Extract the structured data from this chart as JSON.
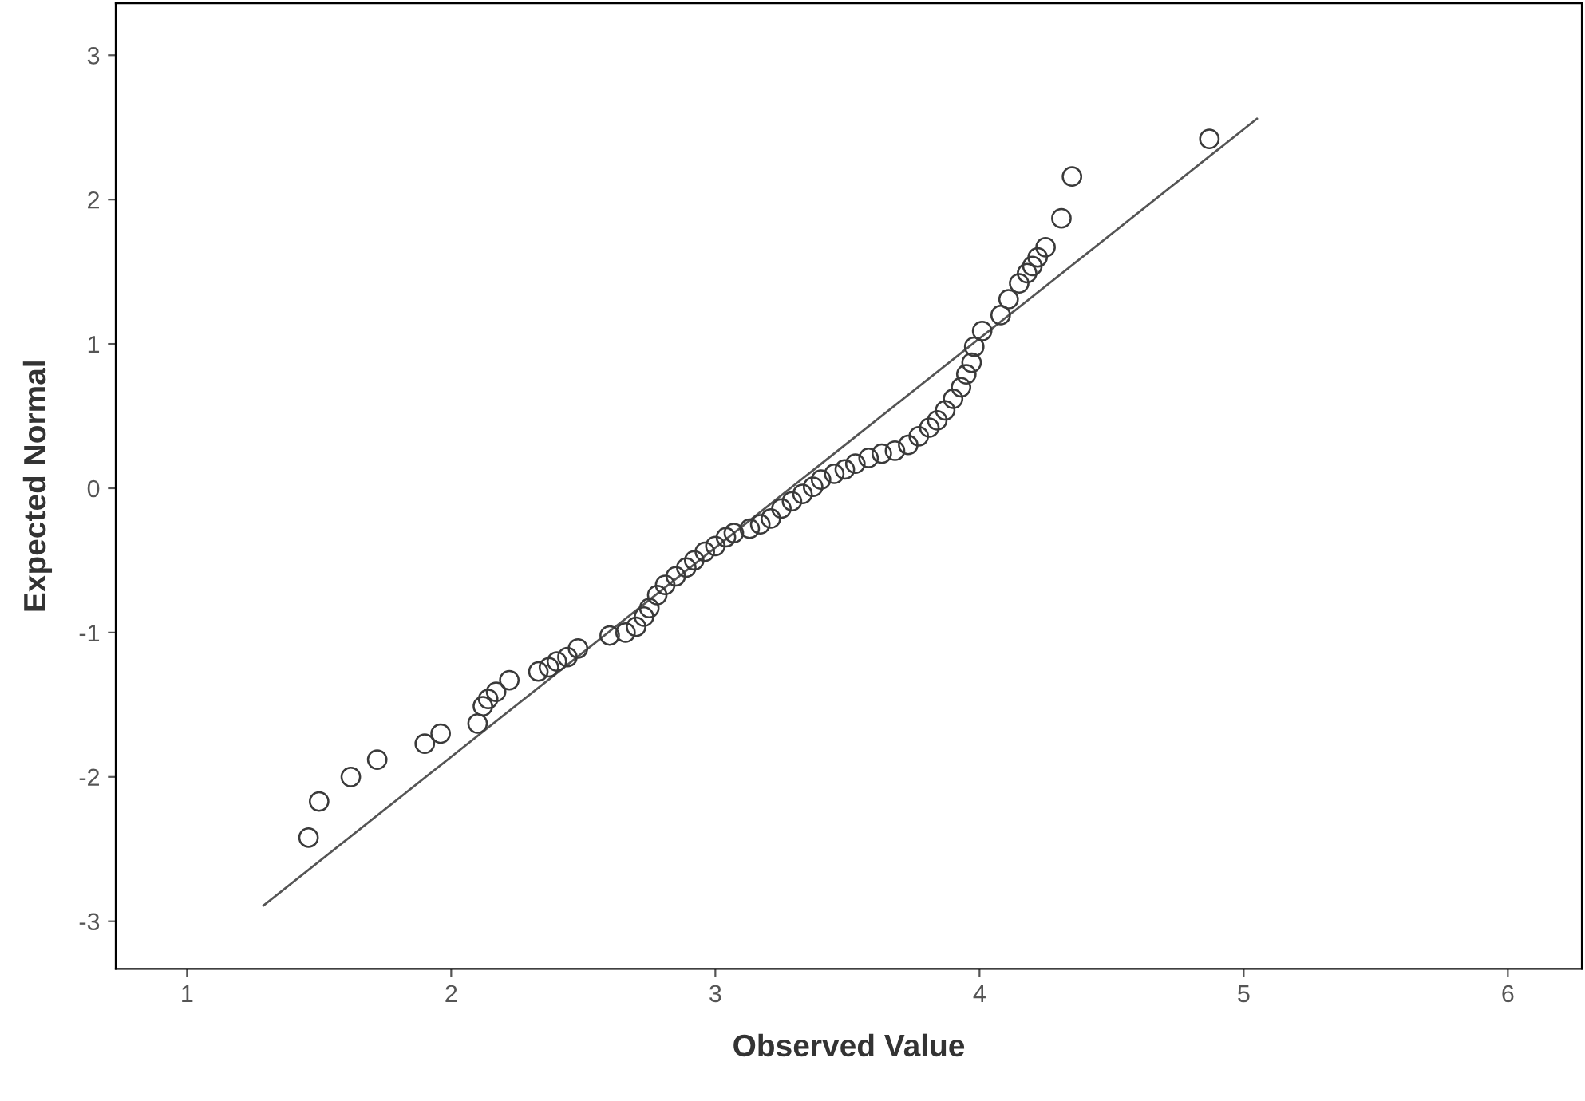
{
  "chart_data": {
    "type": "scatter",
    "xlabel": "Observed Value",
    "ylabel": "Expected Normal",
    "xlim": [
      0.73,
      6.28
    ],
    "ylim": [
      -3.33,
      3.36
    ],
    "xticks": [
      1,
      2,
      3,
      4,
      5,
      6
    ],
    "yticks": [
      -3,
      -2,
      -1,
      0,
      1,
      2,
      3
    ],
    "grid": false,
    "marker": "circle",
    "series": [
      {
        "color": "#3a3a3a",
        "x": [
          1.46,
          1.5,
          1.62,
          1.72,
          1.9,
          1.96,
          2.1,
          2.12,
          2.14,
          2.17,
          2.22,
          2.33,
          2.37,
          2.4,
          2.44,
          2.48,
          2.6,
          2.66,
          2.7,
          2.73,
          2.75,
          2.78,
          2.81,
          2.85,
          2.89,
          2.92,
          2.96,
          3.0,
          3.04,
          3.07,
          3.13,
          3.17,
          3.21,
          3.25,
          3.29,
          3.33,
          3.37,
          3.4,
          3.45,
          3.49,
          3.53,
          3.58,
          3.63,
          3.68,
          3.73,
          3.77,
          3.81,
          3.84,
          3.87,
          3.9,
          3.93,
          3.95,
          3.97,
          3.98,
          4.01,
          4.08,
          4.11,
          4.15,
          4.18,
          4.2,
          4.22,
          4.25,
          4.31,
          4.35,
          4.87
        ],
        "values": [
          -2.42,
          -2.17,
          -2.0,
          -1.88,
          -1.77,
          -1.7,
          -1.63,
          -1.51,
          -1.46,
          -1.41,
          -1.33,
          -1.27,
          -1.24,
          -1.2,
          -1.17,
          -1.11,
          -1.02,
          -1.0,
          -0.96,
          -0.89,
          -0.83,
          -0.74,
          -0.67,
          -0.61,
          -0.55,
          -0.5,
          -0.44,
          -0.4,
          -0.34,
          -0.31,
          -0.28,
          -0.25,
          -0.21,
          -0.14,
          -0.09,
          -0.04,
          0.01,
          0.06,
          0.1,
          0.13,
          0.17,
          0.21,
          0.24,
          0.26,
          0.3,
          0.36,
          0.42,
          0.47,
          0.54,
          0.62,
          0.7,
          0.79,
          0.87,
          0.98,
          1.09,
          1.2,
          1.31,
          1.42,
          1.49,
          1.54,
          1.6,
          1.67,
          1.87,
          2.16,
          2.42
        ]
      },
      {
        "type": "line",
        "color": "#555555",
        "marker": "none",
        "x": [
          1.29,
          5.05
        ],
        "values": [
          -2.89,
          2.56
        ]
      }
    ]
  }
}
